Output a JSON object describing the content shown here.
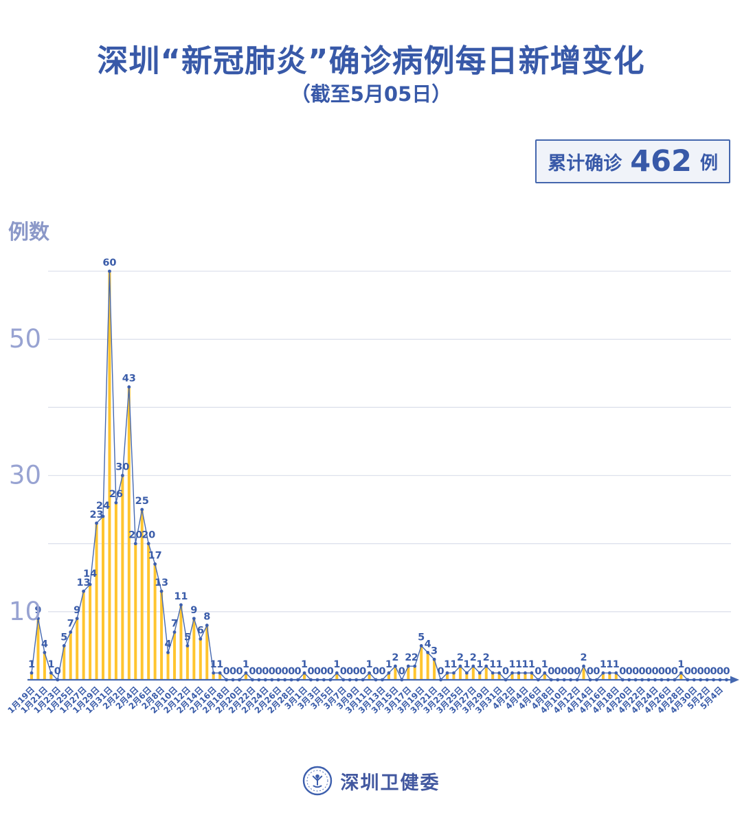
{
  "header": {
    "title": "深圳“新冠肺炎”确诊病例每日新增变化",
    "subtitle": "（截至5月05日）"
  },
  "badge": {
    "prefix": "累计确诊",
    "value": "462",
    "suffix": "例"
  },
  "footer": {
    "logo_text": "深圳卫健委",
    "logo_icon": "shenzhen-health-commission-emblem"
  },
  "colors": {
    "accent_blue": "#3859a8",
    "label_blue": "#3a5ca9",
    "line_blue": "#4568b0",
    "dot_blue": "#3d5fad",
    "bar_yellow": "#ffc52f",
    "grid": "#dde1ec",
    "ytick_light": "#98a3d2"
  },
  "chart_data": {
    "type": "bar",
    "title": "深圳“新冠肺炎”确诊病例每日新增变化（截至5月05日）",
    "xlabel": "",
    "ylabel": "例数",
    "ylim": [
      0,
      60
    ],
    "yticks_labeled": [
      10,
      30,
      50
    ],
    "gridlines": [
      10,
      20,
      30,
      40,
      50,
      60
    ],
    "legend": "none",
    "n_points": 108,
    "date_range": "1月19日 至 5月5日",
    "x_label_every": 2,
    "x_labels": [
      "1月19日",
      "1月21日",
      "1月23日",
      "1月25日",
      "1月27日",
      "1月29日",
      "1月31日",
      "2月2日",
      "2月4日",
      "2月6日",
      "2月8日",
      "2月10日",
      "2月12日",
      "2月14日",
      "2月16日",
      "2月18日",
      "2月20日",
      "2月22日",
      "2月24日",
      "2月26日",
      "2月28日",
      "3月1日",
      "3月3日",
      "3月5日",
      "3月7日",
      "3月9日",
      "3月11日",
      "3月13日",
      "3月15日",
      "3月17日",
      "3月19日",
      "3月21日",
      "3月23日",
      "3月25日",
      "3月27日",
      "3月29日",
      "3月31日",
      "4月2日",
      "4月4日",
      "4月6日",
      "4月8日",
      "4月10日",
      "4月12日",
      "4月14日",
      "4月16日",
      "4月18日",
      "4月20日",
      "4月22日",
      "4月24日",
      "4月26日",
      "4月28日",
      "4月30日",
      "5月2日",
      "5月4日"
    ],
    "values": [
      1,
      9,
      4,
      1,
      0,
      5,
      7,
      9,
      13,
      14,
      23,
      24,
      60,
      26,
      30,
      43,
      20,
      25,
      20,
      17,
      13,
      4,
      7,
      11,
      5,
      9,
      6,
      8,
      1,
      1,
      0,
      0,
      0,
      1,
      0,
      0,
      0,
      0,
      0,
      0,
      0,
      0,
      1,
      0,
      0,
      0,
      0,
      1,
      0,
      0,
      0,
      0,
      1,
      0,
      0,
      1,
      2,
      0,
      2,
      2,
      5,
      4,
      3,
      0,
      1,
      1,
      2,
      1,
      2,
      1,
      2,
      1,
      1,
      0,
      1,
      1,
      1,
      1,
      0,
      1,
      0,
      0,
      0,
      0,
      0,
      2,
      0,
      0,
      1,
      1,
      1,
      0,
      0,
      0,
      0,
      0,
      0,
      0,
      0,
      0,
      1,
      0,
      0,
      0,
      0,
      0,
      0,
      0
    ],
    "cumulative_total": 462
  }
}
